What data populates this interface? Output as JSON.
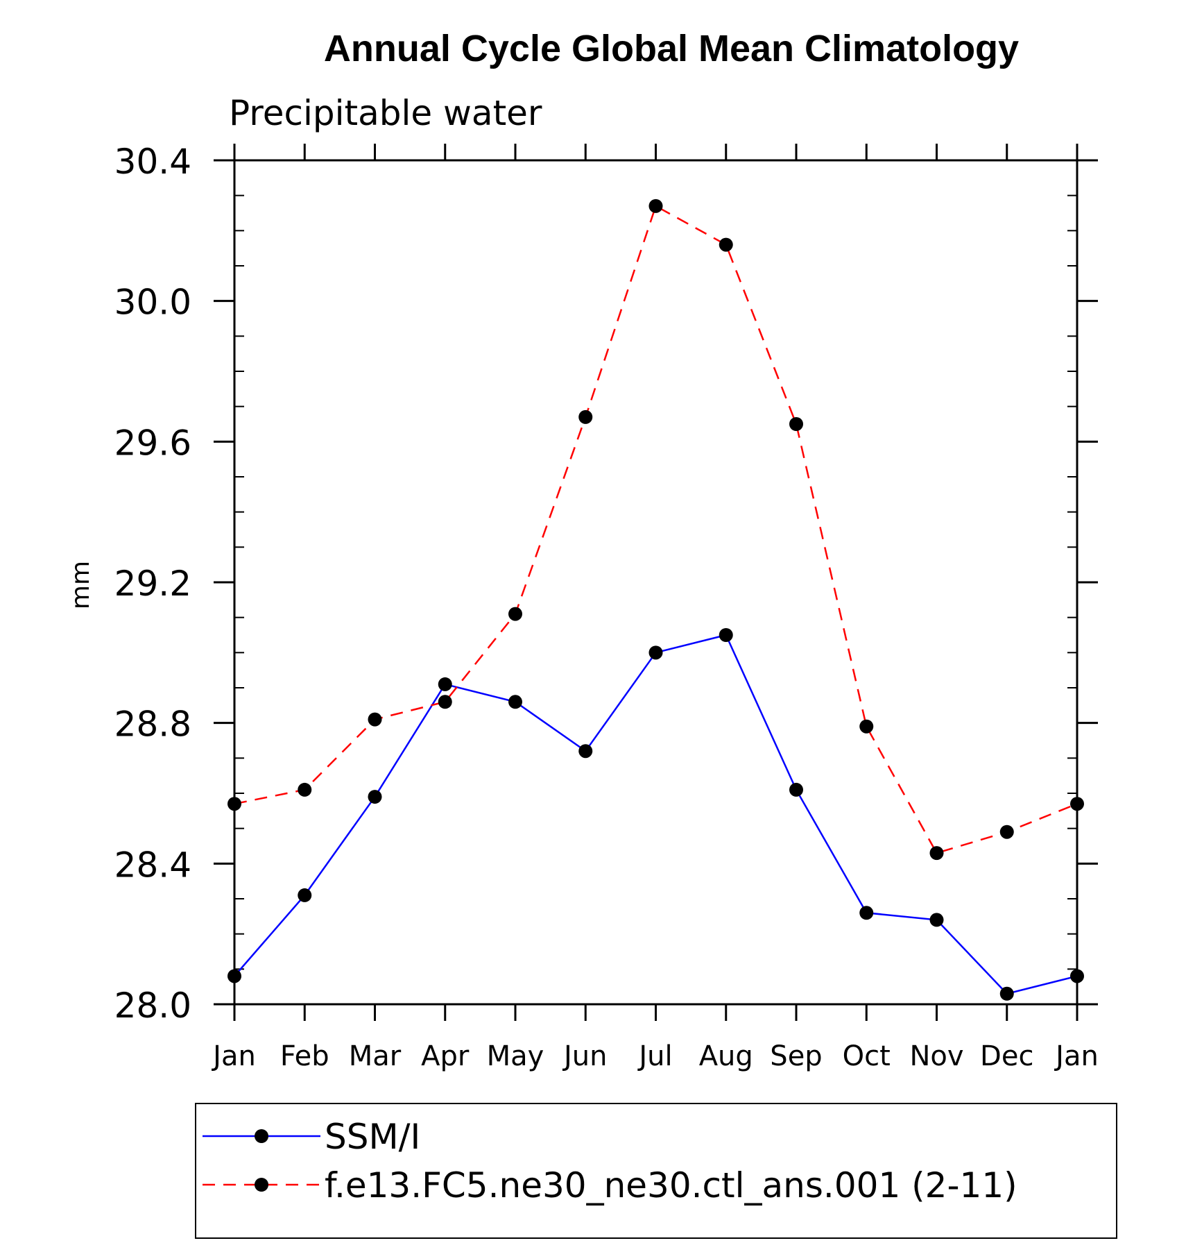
{
  "chart_data": {
    "type": "line",
    "title": "Annual Cycle Global Mean Climatology",
    "subtitle": "Precipitable water",
    "ylabel": "mm",
    "xlabel": "",
    "categories": [
      "Jan",
      "Feb",
      "Mar",
      "Apr",
      "May",
      "Jun",
      "Jul",
      "Aug",
      "Sep",
      "Oct",
      "Nov",
      "Dec",
      "Jan"
    ],
    "ylim": [
      28.0,
      30.4
    ],
    "yticks": [
      "28.0",
      "28.4",
      "28.8",
      "29.2",
      "29.6",
      "30.0",
      "30.4"
    ],
    "grid": false,
    "legend_position": "bottom",
    "series": [
      {
        "name": "SSM/I",
        "color": "#0000ff",
        "dash": "solid",
        "marker": "circle",
        "values": [
          28.08,
          28.31,
          28.59,
          28.91,
          28.86,
          28.72,
          29.0,
          29.05,
          28.61,
          28.26,
          28.24,
          28.03,
          28.08
        ]
      },
      {
        "name": "f.e13.FC5.ne30_ne30.ctl_ans.001 (2-11)",
        "color": "#ff0000",
        "dash": "dashed",
        "marker": "circle",
        "values": [
          28.57,
          28.61,
          28.81,
          28.86,
          29.11,
          29.67,
          30.27,
          30.16,
          29.65,
          28.79,
          28.43,
          28.49,
          28.57
        ]
      }
    ]
  }
}
